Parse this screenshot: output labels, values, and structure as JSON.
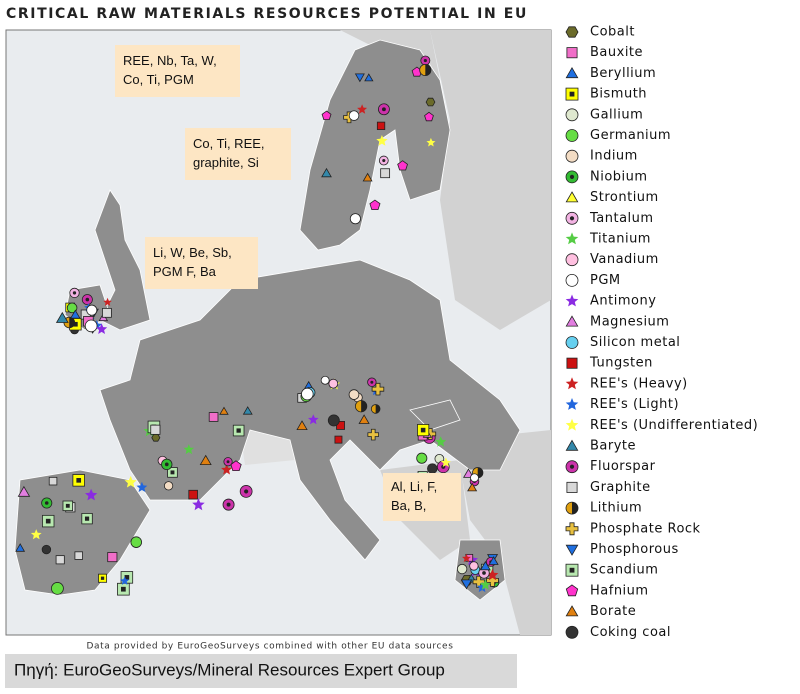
{
  "title": "CRITICAL RAW MATERIALS RESOURCES POTENTIAL IN EU",
  "annotations": [
    {
      "lines": [
        "REE, Nb, Ta, W,",
        "Co, Ti, PGM"
      ]
    },
    {
      "lines": [
        "Co, Ti, REE,",
        "graphite, Si"
      ]
    },
    {
      "lines": [
        "Li, W, Be, Sb,",
        "PGM  F, Ba"
      ]
    },
    {
      "lines": [
        "Al, Li, F,",
        "Ba, B,"
      ]
    }
  ],
  "legend": [
    {
      "label": "Cobalt",
      "color": "#6b6b2a"
    },
    {
      "label": "Bauxite",
      "color": "#f06ec8"
    },
    {
      "label": "Beryllium",
      "color": "#1f6fe0"
    },
    {
      "label": "Bismuth",
      "color": "#ffff00"
    },
    {
      "label": "Gallium",
      "color": "#dfe8cf"
    },
    {
      "label": "Germanium",
      "color": "#66dd44"
    },
    {
      "label": "Indium",
      "color": "#f3dcc4"
    },
    {
      "label": "Niobium",
      "color": "#33bb33"
    },
    {
      "label": "Strontium",
      "color": "#ffff33"
    },
    {
      "label": "Tantalum",
      "color": "#f3b3e3"
    },
    {
      "label": "Titanium",
      "color": "#55cc44"
    },
    {
      "label": "Vanadium",
      "color": "#ffc0e0"
    },
    {
      "label": "PGM",
      "color": "#ffffff"
    },
    {
      "label": "Antimony",
      "color": "#8a2be2"
    },
    {
      "label": "Magnesium",
      "color": "#e27ee0"
    },
    {
      "label": "Silicon metal",
      "color": "#66d0f0"
    },
    {
      "label": "Tungsten",
      "color": "#cc1111"
    },
    {
      "label": "REE's (Heavy)",
      "color": "#cc2222"
    },
    {
      "label": "REE's (Light)",
      "color": "#2266dd"
    },
    {
      "label": "REE's (Undifferentiated)",
      "color": "#ffff44"
    },
    {
      "label": "Baryte",
      "color": "#3388aa"
    },
    {
      "label": "Fluorspar",
      "color": "#cc33aa"
    },
    {
      "label": "Graphite",
      "color": "#d8d8d8"
    },
    {
      "label": "Lithium",
      "color": "#e0a010"
    },
    {
      "label": "Phosphate Rock",
      "color": "#e8c040"
    },
    {
      "label": "Phosphorous",
      "color": "#1f6fe0"
    },
    {
      "label": "Scandium",
      "color": "#b8e8b0"
    },
    {
      "label": "Hafnium",
      "color": "#ff33cc"
    },
    {
      "label": "Borate",
      "color": "#e08010"
    },
    {
      "label": "Coking coal",
      "color": "#333333"
    }
  ],
  "source_note": "Data provided by EuroGeoSurveys combined with other EU data sources",
  "footer": "Πηγή: EuroGeoSurveys/Mineral Resources Expert Group"
}
